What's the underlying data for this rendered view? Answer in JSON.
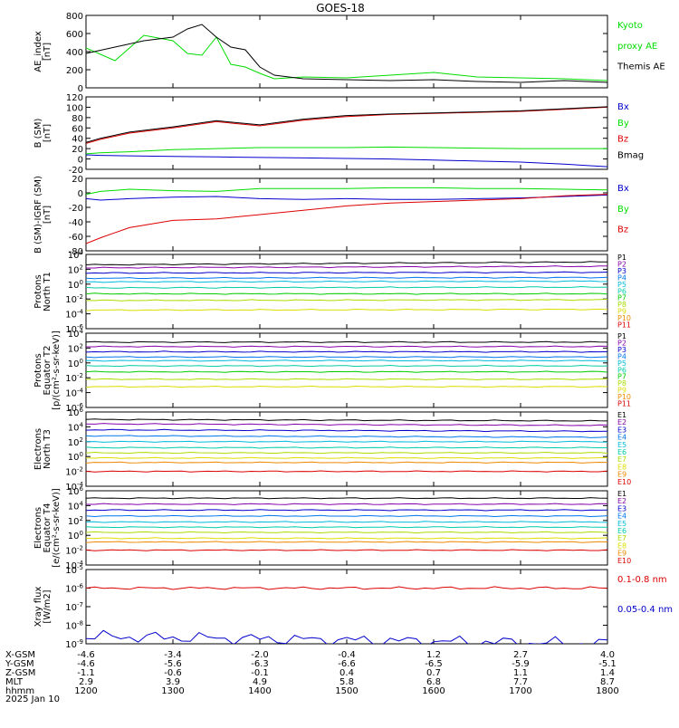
{
  "title": "GOES-18",
  "date": "2025 Jan 10",
  "colors": {
    "black": "#000000",
    "red": "#dd0000",
    "green": "#00dd00",
    "blue": "#0000cc",
    "P": [
      "#000000",
      "#8800aa",
      "#0000cc",
      "#0077ee",
      "#00bbdd",
      "#00ccaa",
      "#00cc00",
      "#aadd00",
      "#dddd00",
      "#ee8800",
      "#dd0000"
    ],
    "E": [
      "#000000",
      "#8800aa",
      "#0000cc",
      "#0077ee",
      "#00bbdd",
      "#00ccaa",
      "#aadd00",
      "#dddd00",
      "#ee8800",
      "#dd0000"
    ]
  },
  "panels": [
    {
      "id": "ae",
      "ylabel": [
        "AE_index",
        "[nT]"
      ],
      "ylim": [
        0,
        800
      ],
      "ticks": [
        "800",
        "600",
        "400",
        "200",
        "0"
      ],
      "tickvals": [
        800,
        600,
        400,
        200,
        0
      ],
      "legend": [
        {
          "text": "Kyoto",
          "color": "green"
        },
        {
          "text": "proxy AE",
          "color": "green"
        },
        {
          "text": "Themis AE",
          "color": "black"
        }
      ]
    },
    {
      "id": "b",
      "ylabel": [
        "B (SM)",
        "[nT]"
      ],
      "ylim": [
        -20,
        120
      ],
      "ticks": [
        "120",
        "100",
        "80",
        "60",
        "40",
        "20",
        "0",
        "-20"
      ],
      "tickvals": [
        120,
        100,
        80,
        60,
        40,
        20,
        0,
        -20
      ],
      "legend": [
        {
          "text": "Bx",
          "color": "blue"
        },
        {
          "text": "By",
          "color": "green"
        },
        {
          "text": "Bz",
          "color": "red"
        },
        {
          "text": "Bmag",
          "color": "black"
        }
      ]
    },
    {
      "id": "bigrf",
      "ylabel": [
        "B (SM)-IGRF (SM)",
        "[nT]"
      ],
      "ylim": [
        -80,
        20
      ],
      "ticks": [
        "20",
        "0",
        "-20",
        "-40",
        "-60",
        "-80"
      ],
      "tickvals": [
        20,
        0,
        -20,
        -40,
        -60,
        -80
      ],
      "legend": [
        {
          "text": "Bx",
          "color": "blue"
        },
        {
          "text": "By",
          "color": "green"
        },
        {
          "text": "Bz",
          "color": "red"
        }
      ]
    },
    {
      "id": "pt1",
      "ylabel": [
        "Protons",
        "North T1"
      ],
      "ylim": [
        -6,
        4
      ],
      "ticks": [
        "10^4",
        "10^2",
        "10^0",
        "10^-2",
        "10^-4",
        "10^-6"
      ],
      "tickvals": [
        4,
        2,
        0,
        -2,
        -4,
        -6
      ],
      "chan_prefix": "P",
      "chan_count": 11,
      "legend": [
        "P1",
        "P2",
        "P3",
        "P4",
        "P5",
        "P6",
        "P7",
        "P8",
        "P9",
        "P10",
        "P11"
      ]
    },
    {
      "id": "pt2",
      "ylabel": [
        "Protons",
        "Equator T2",
        "[p/(cm²-s-sr-keV)]"
      ],
      "ylim": [
        -6,
        4
      ],
      "ticks": [
        "10^4",
        "10^2",
        "10^0",
        "10^-2",
        "10^-4",
        "10^-6"
      ],
      "tickvals": [
        4,
        2,
        0,
        -2,
        -4,
        -6
      ],
      "chan_prefix": "P",
      "chan_count": 11,
      "legend": [
        "P1",
        "P2",
        "P3",
        "P4",
        "P5",
        "P6",
        "P7",
        "P8",
        "P9",
        "P10",
        "P11"
      ]
    },
    {
      "id": "et3",
      "ylabel": [
        "Electrons",
        "North T3"
      ],
      "ylim": [
        -4,
        6
      ],
      "ticks": [
        "10^6",
        "10^4",
        "10^2",
        "10^0",
        "10^-2",
        "10^-4"
      ],
      "tickvals": [
        6,
        4,
        2,
        0,
        -2,
        -4
      ],
      "chan_prefix": "E",
      "chan_count": 10,
      "legend": [
        "E1",
        "E2",
        "E3",
        "E4",
        "E5",
        "E6",
        "E7",
        "E8",
        "E9",
        "E10"
      ]
    },
    {
      "id": "et4",
      "ylabel": [
        "Electrons",
        "Equator T4",
        "[e/(cm²-s-sr-keV)]"
      ],
      "ylim": [
        -4,
        6
      ],
      "ticks": [
        "10^6",
        "10^4",
        "10^2",
        "10^0",
        "10^-2",
        "10^-4"
      ],
      "tickvals": [
        6,
        4,
        2,
        0,
        -2,
        -4
      ],
      "chan_prefix": "E",
      "chan_count": 10,
      "legend": [
        "E1",
        "E2",
        "E3",
        "E4",
        "E5",
        "E6",
        "E7",
        "E8",
        "E9",
        "E10"
      ]
    },
    {
      "id": "xray",
      "ylabel": [
        "Xray flux",
        "[W/m2]"
      ],
      "ylim": [
        -9,
        -5
      ],
      "ticks": [
        "10^-5",
        "10^-6",
        "10^-7",
        "10^-8",
        "10^-9"
      ],
      "tickvals": [
        -5,
        -6,
        -7,
        -8,
        -9
      ],
      "legend": [
        {
          "text": "0.1-0.8 nm",
          "color": "red"
        },
        {
          "text": "0.05-0.4 nm",
          "color": "blue"
        }
      ]
    }
  ],
  "xaxis": {
    "rows": [
      {
        "label": "X-GSM",
        "values": [
          "-4.6",
          "-3.4",
          "-2.0",
          "-0.4",
          "1.2",
          "2.7",
          "4.0"
        ]
      },
      {
        "label": "Y-GSM",
        "values": [
          "-4.6",
          "-5.6",
          "-6.3",
          "-6.6",
          "-6.5",
          "-5.9",
          "-5.1"
        ]
      },
      {
        "label": "Z-GSM",
        "values": [
          "-1.1",
          "-0.6",
          "-0.1",
          "0.4",
          "0.7",
          "1.1",
          "1.4"
        ]
      },
      {
        "label": "MLT",
        "values": [
          "2.9",
          "3.9",
          "4.9",
          "5.8",
          "6.8",
          "7.7",
          "8.7"
        ]
      },
      {
        "label": "hhmm",
        "values": [
          "1200",
          "1300",
          "1400",
          "1500",
          "1600",
          "1700",
          "1800"
        ]
      }
    ]
  },
  "chart_data": [
    {
      "type": "line",
      "title": "GOES-18",
      "ylabel": "AE_index [nT]",
      "ylim": [
        0,
        800
      ],
      "x": [
        "1200",
        "1220",
        "1240",
        "1300",
        "1310",
        "1320",
        "1330",
        "1340",
        "1350",
        "1400",
        "1410",
        "1430",
        "1500",
        "1530",
        "1600",
        "1630",
        "1700",
        "1730",
        "1800"
      ],
      "series": [
        {
          "name": "Kyoto proxy AE",
          "values": [
            440,
            300,
            580,
            520,
            380,
            360,
            560,
            260,
            230,
            160,
            100,
            120,
            110,
            140,
            170,
            120,
            110,
            100,
            80
          ]
        },
        {
          "name": "Themis AE",
          "values": [
            380,
            450,
            520,
            560,
            650,
            700,
            560,
            450,
            420,
            230,
            140,
            100,
            90,
            80,
            90,
            70,
            60,
            80,
            60
          ]
        }
      ]
    },
    {
      "type": "line",
      "ylabel": "B (SM) [nT]",
      "ylim": [
        -20,
        120
      ],
      "x": [
        "1200",
        "1210",
        "1230",
        "1300",
        "1330",
        "1400",
        "1430",
        "1500",
        "1530",
        "1600",
        "1630",
        "1700",
        "1730",
        "1800"
      ],
      "series": [
        {
          "name": "Bx",
          "values": [
            8,
            7,
            6,
            5,
            4,
            3,
            2,
            1,
            0,
            -2,
            -4,
            -6,
            -10,
            -15
          ]
        },
        {
          "name": "By",
          "values": [
            10,
            12,
            14,
            18,
            20,
            22,
            22,
            22,
            23,
            22,
            21,
            20,
            20,
            20
          ]
        },
        {
          "name": "Bz",
          "values": [
            30,
            38,
            50,
            60,
            72,
            64,
            75,
            82,
            86,
            88,
            90,
            92,
            96,
            100
          ]
        },
        {
          "name": "Bmag",
          "values": [
            32,
            40,
            52,
            62,
            74,
            66,
            77,
            84,
            87,
            89,
            91,
            93,
            97,
            101
          ]
        }
      ]
    },
    {
      "type": "line",
      "ylabel": "B (SM)-IGRF (SM) [nT]",
      "ylim": [
        -80,
        20
      ],
      "x": [
        "1200",
        "1210",
        "1230",
        "1300",
        "1330",
        "1400",
        "1430",
        "1500",
        "1530",
        "1600",
        "1630",
        "1700",
        "1730",
        "1800"
      ],
      "series": [
        {
          "name": "Bx",
          "values": [
            -8,
            -10,
            -8,
            -6,
            -5,
            -8,
            -9,
            -8,
            -9,
            -9,
            -8,
            -7,
            -5,
            -3
          ]
        },
        {
          "name": "By",
          "values": [
            -2,
            2,
            5,
            3,
            2,
            6,
            6,
            6,
            7,
            7,
            6,
            6,
            5,
            4
          ]
        },
        {
          "name": "Bz",
          "values": [
            -70,
            -62,
            -48,
            -38,
            -36,
            -30,
            -24,
            -18,
            -14,
            -12,
            -10,
            -8,
            -4,
            -2
          ]
        }
      ]
    },
    {
      "type": "line",
      "ylabel": "Protons North T1 (log10 flux)",
      "ylim": [
        -6,
        4
      ],
      "x": [
        "1200",
        "1800"
      ],
      "series": [
        {
          "name": "P1",
          "values": [
            2.6,
            3.0
          ]
        },
        {
          "name": "P2",
          "values": [
            2.2,
            2.4
          ]
        },
        {
          "name": "P3",
          "values": [
            1.5,
            1.6
          ]
        },
        {
          "name": "P4",
          "values": [
            0.8,
            0.9
          ]
        },
        {
          "name": "P5",
          "values": [
            0.3,
            0.4
          ]
        },
        {
          "name": "P6",
          "values": [
            -0.5,
            -0.4
          ]
        },
        {
          "name": "P7",
          "values": [
            -1.3,
            -1.3
          ]
        },
        {
          "name": "P8",
          "values": [
            -2.2,
            -2.1
          ]
        },
        {
          "name": "P9",
          "values": [
            -3.5,
            -3.4
          ]
        }
      ]
    },
    {
      "type": "line",
      "ylabel": "Protons Equator T2 [p/(cm²-s-sr-keV)]",
      "ylim": [
        -6,
        4
      ],
      "x": [
        "1200",
        "1800"
      ],
      "series": [
        {
          "name": "P1",
          "values": [
            2.8,
            2.8
          ]
        },
        {
          "name": "P2",
          "values": [
            2.2,
            2.2
          ]
        },
        {
          "name": "P3",
          "values": [
            1.5,
            1.5
          ]
        },
        {
          "name": "P4",
          "values": [
            0.8,
            0.8
          ]
        },
        {
          "name": "P5",
          "values": [
            0.3,
            0.3
          ]
        },
        {
          "name": "P6",
          "values": [
            -0.4,
            -0.4
          ]
        },
        {
          "name": "P7",
          "values": [
            -1.2,
            -1.2
          ]
        },
        {
          "name": "P8",
          "values": [
            -2.2,
            -2.2
          ]
        },
        {
          "name": "P9",
          "values": [
            -3.2,
            -3.2
          ]
        }
      ]
    },
    {
      "type": "line",
      "ylabel": "Electrons North T3 (log10 flux)",
      "ylim": [
        -4,
        6
      ],
      "x": [
        "1200",
        "1800"
      ],
      "series": [
        {
          "name": "E1",
          "values": [
            5.0,
            4.8
          ]
        },
        {
          "name": "E2",
          "values": [
            4.4,
            4.2
          ]
        },
        {
          "name": "E3",
          "values": [
            3.6,
            3.4
          ]
        },
        {
          "name": "E4",
          "values": [
            2.8,
            2.6
          ]
        },
        {
          "name": "E5",
          "values": [
            2.0,
            2.0
          ]
        },
        {
          "name": "E6",
          "values": [
            1.2,
            1.2
          ]
        },
        {
          "name": "E7",
          "values": [
            0.5,
            0.5
          ]
        },
        {
          "name": "E8",
          "values": [
            -0.2,
            -0.2
          ]
        },
        {
          "name": "E9",
          "values": [
            -0.8,
            -0.8
          ]
        },
        {
          "name": "E10",
          "values": [
            -2.0,
            -2.0
          ]
        }
      ]
    },
    {
      "type": "line",
      "ylabel": "Electrons Equator T4 [e/(cm²-s-sr-keV)]",
      "ylim": [
        -4,
        6
      ],
      "x": [
        "1200",
        "1800"
      ],
      "series": [
        {
          "name": "E1",
          "values": [
            5.0,
            5.0
          ]
        },
        {
          "name": "E2",
          "values": [
            4.2,
            4.2
          ]
        },
        {
          "name": "E3",
          "values": [
            3.4,
            3.4
          ]
        },
        {
          "name": "E4",
          "values": [
            2.6,
            2.6
          ]
        },
        {
          "name": "E5",
          "values": [
            1.8,
            1.8
          ]
        },
        {
          "name": "E6",
          "values": [
            1.1,
            1.1
          ]
        },
        {
          "name": "E7",
          "values": [
            0.4,
            0.4
          ]
        },
        {
          "name": "E8",
          "values": [
            -0.4,
            -0.4
          ]
        },
        {
          "name": "E9",
          "values": [
            -0.9,
            -0.9
          ]
        },
        {
          "name": "E10",
          "values": [
            -2.0,
            -2.0
          ]
        }
      ]
    },
    {
      "type": "line",
      "ylabel": "Xray flux [W/m2] (log10)",
      "ylim": [
        -9,
        -5
      ],
      "x": [
        "1200",
        "1800"
      ],
      "series": [
        {
          "name": "0.1-0.8 nm",
          "values": [
            -6.0,
            -6.0
          ]
        },
        {
          "name": "0.05-0.4 nm",
          "values": [
            -8.6,
            -9.0
          ]
        }
      ]
    }
  ]
}
